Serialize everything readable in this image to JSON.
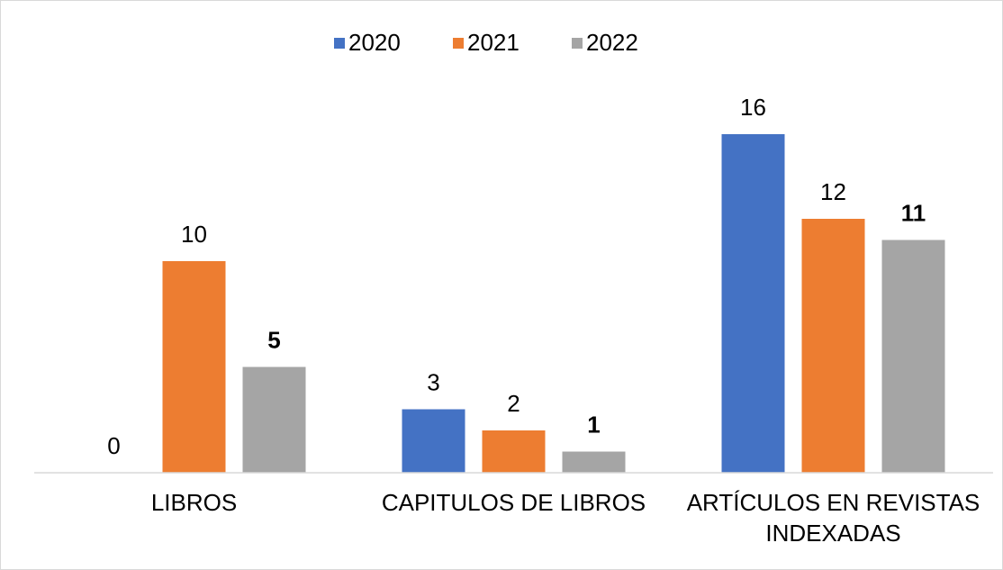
{
  "chart_data": {
    "type": "bar",
    "categories": [
      "LIBROS",
      "CAPITULOS DE LIBROS",
      "ARTÍCULOS EN REVISTAS INDEXADAS"
    ],
    "series": [
      {
        "name": "2020",
        "color": "#4472c4",
        "values": [
          0,
          3,
          16
        ]
      },
      {
        "name": "2021",
        "color": "#ed7d31",
        "values": [
          10,
          2,
          12
        ]
      },
      {
        "name": "2022",
        "color": "#a5a5a5",
        "values": [
          5,
          1,
          11
        ],
        "label_bold": true
      }
    ],
    "legend": "top",
    "data_labels": true
  }
}
